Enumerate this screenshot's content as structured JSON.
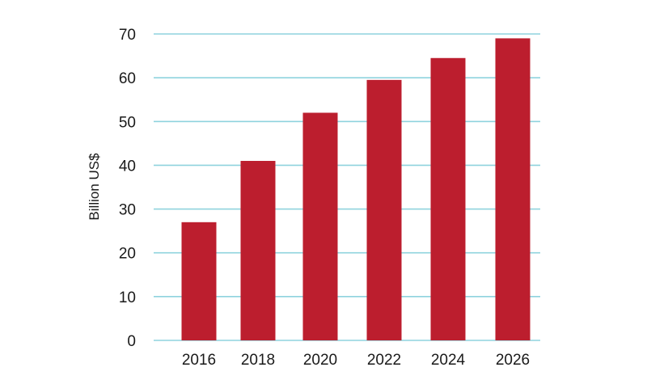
{
  "chart_data": {
    "type": "bar",
    "title": "",
    "xlabel": "",
    "ylabel": "Billion US$",
    "categories": [
      "2016",
      "2018",
      "2020",
      "2022",
      "2024",
      "2026"
    ],
    "values": [
      27,
      41,
      52,
      59.5,
      64.5,
      69
    ],
    "ylim": [
      0,
      70
    ],
    "yticks": [
      "0",
      "10",
      "20",
      "30",
      "40",
      "50",
      "60",
      "70"
    ],
    "grid": true,
    "legend": "none",
    "colors": {
      "bar": "#bc1e2e",
      "grid": "#8fd3de",
      "text": "#1a1a1a"
    }
  }
}
